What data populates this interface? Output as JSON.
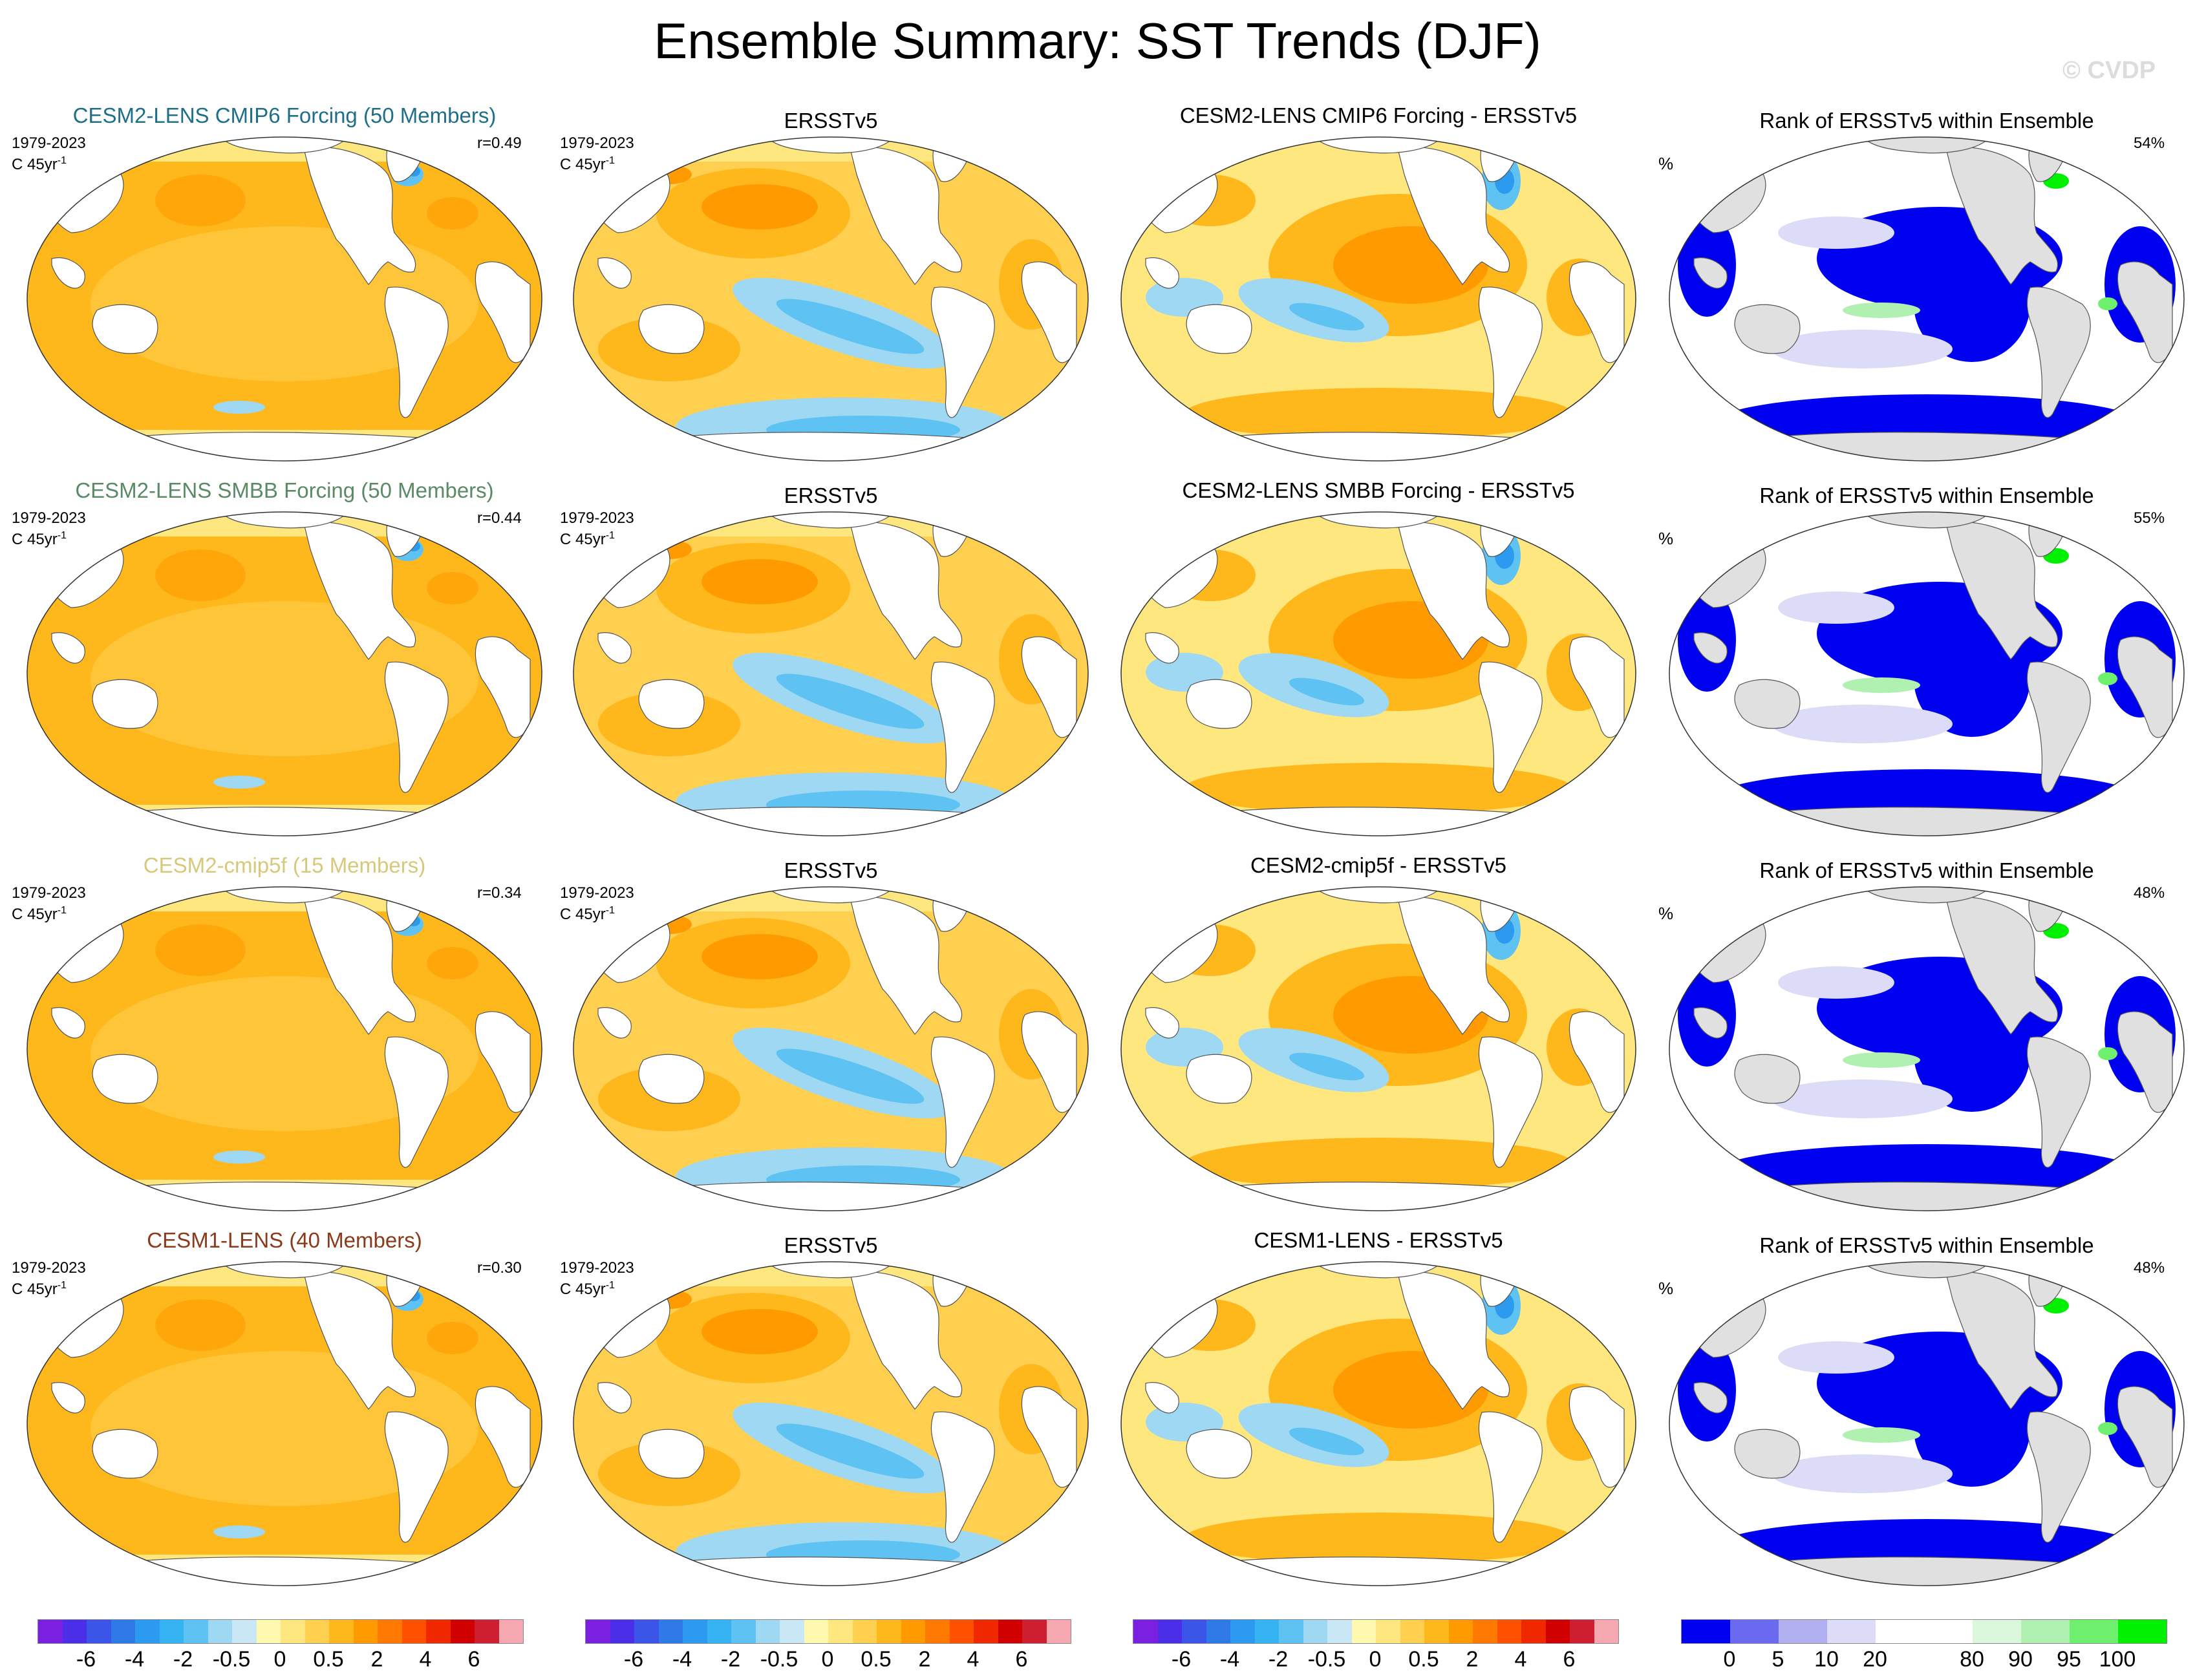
{
  "title": "Ensemble Summary: SST Trends (DJF)",
  "watermark": "© CVDP",
  "rows": [
    {
      "model_title": "CESM2-LENS CMIP6 Forcing (50 Members)",
      "model_color": "#1f6f8b",
      "period": "1979-2023",
      "units": "C 45yr",
      "units_sup": "-1",
      "r_value": "r=0.49",
      "obs_title": "ERSSTv5",
      "obs_period": "1979-2023",
      "diff_title": "CESM2-LENS CMIP6 Forcing - ERSSTv5",
      "rank_title": "Rank of ERSSTv5 within Ensemble",
      "rank_units": "%",
      "rank_pct": "54%"
    },
    {
      "model_title": "CESM2-LENS SMBB Forcing (50 Members)",
      "model_color": "#5a8a66",
      "period": "1979-2023",
      "units": "C 45yr",
      "units_sup": "-1",
      "r_value": "r=0.44",
      "obs_title": "ERSSTv5",
      "obs_period": "1979-2023",
      "diff_title": "CESM2-LENS SMBB Forcing - ERSSTv5",
      "rank_title": "Rank of ERSSTv5 within Ensemble",
      "rank_units": "%",
      "rank_pct": "55%"
    },
    {
      "model_title": "CESM2-cmip5f (15 Members)",
      "model_color": "#d8c87a",
      "period": "1979-2023",
      "units": "C 45yr",
      "units_sup": "-1",
      "r_value": "r=0.34",
      "obs_title": "ERSSTv5",
      "obs_period": "1979-2023",
      "diff_title": "CESM2-cmip5f - ERSSTv5",
      "rank_title": "Rank of ERSSTv5 within Ensemble",
      "rank_units": "%",
      "rank_pct": "48%"
    },
    {
      "model_title": "CESM1-LENS (40 Members)",
      "model_color": "#8b3a1a",
      "period": "1979-2023",
      "units": "C 45yr",
      "units_sup": "-1",
      "r_value": "r=0.30",
      "obs_title": "ERSSTv5",
      "obs_period": "1979-2023",
      "diff_title": "CESM1-LENS - ERSSTv5",
      "rank_title": "Rank of ERSSTv5 within Ensemble",
      "rank_units": "%",
      "rank_pct": "48%"
    }
  ],
  "colorbar_sst": {
    "colors": [
      "#7b1fe0",
      "#4a2ee8",
      "#3a55e8",
      "#2f7ae6",
      "#2c9aee",
      "#36b3f2",
      "#5ec3f2",
      "#9fd8f2",
      "#c9e7f5",
      "#fff8b0",
      "#ffe780",
      "#ffcf50",
      "#ffb81c",
      "#ff9a00",
      "#ff7800",
      "#ff5000",
      "#f02800",
      "#d00000",
      "#cc2030",
      "#f5a8b0"
    ],
    "labels": [
      "-6",
      "-4",
      "-2",
      "-0.5",
      "0",
      "0.5",
      "2",
      "4",
      "6"
    ]
  },
  "colorbar_rank": {
    "colors": [
      "#0000f0",
      "#6a6af0",
      "#b0b0f0",
      "#dcdcf8",
      "#ffffff",
      "#ffffff",
      "#dcf8dc",
      "#b0f0b0",
      "#6ef06e",
      "#00f000"
    ],
    "labels": [
      "0",
      "5",
      "10",
      "20",
      "80",
      "90",
      "95",
      "100"
    ]
  },
  "colors": {
    "land": "#ffffff",
    "rank_land": "#e0e0e0",
    "warm": "#ffb81c",
    "cool": "#5ec3f2"
  }
}
